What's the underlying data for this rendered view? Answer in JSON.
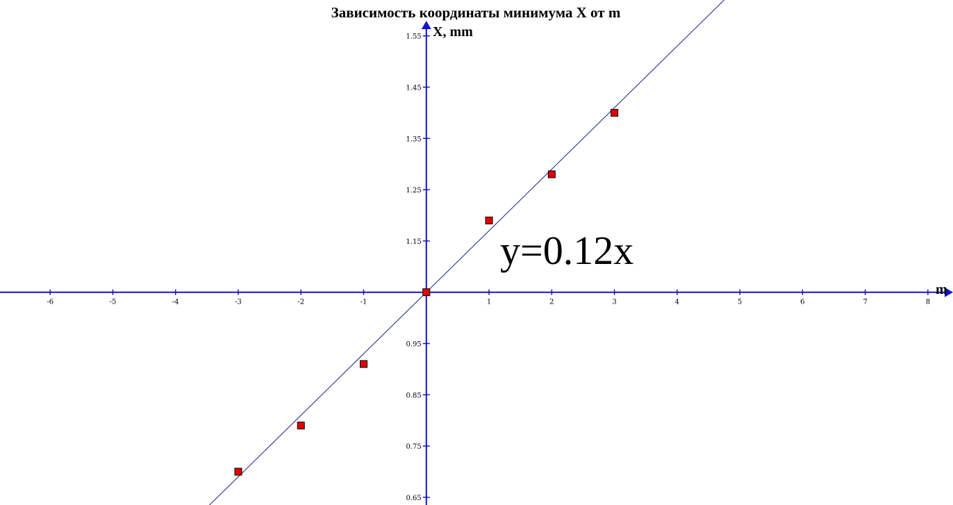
{
  "chart_data": {
    "type": "scatter",
    "title": "Зависимость координаты минимума X от m",
    "xlabel": "m",
    "ylabel": "X, mm",
    "xlim": [
      -6.8,
      8.4
    ],
    "ylim": [
      0.635,
      1.62
    ],
    "x_ticks": [
      -6,
      -5,
      -4,
      -3,
      -2,
      -1,
      1,
      2,
      3,
      4,
      5,
      6,
      7,
      8
    ],
    "x_tick_labels": [
      "-6",
      "-5",
      "-4",
      "-3",
      "-2",
      "-1",
      "1",
      "2",
      "3",
      "4",
      "5",
      "6",
      "7",
      "8"
    ],
    "y_ticks": [
      0.65,
      0.75,
      0.85,
      0.95,
      1.15,
      1.25,
      1.35,
      1.45,
      1.55
    ],
    "y_tick_labels": [
      "0.65",
      "0.75",
      "0.85",
      "0.95",
      "1.15",
      "1.25",
      "1.35",
      "1.45",
      "1.55"
    ],
    "axis_crossing": {
      "x": 0,
      "y": 1.05
    },
    "grid": false,
    "series": [
      {
        "x": [
          -3,
          -2,
          -1,
          0,
          1,
          2,
          3
        ],
        "y": [
          0.7,
          0.79,
          0.91,
          1.05,
          1.19,
          1.28,
          1.4
        ],
        "marker": "square",
        "color": "#e00000"
      }
    ],
    "fit_line": {
      "label": "y=0.12x",
      "slope": 0.12,
      "intercept": 1.05,
      "x_range": [
        -3.5,
        4.8
      ],
      "color": "#1a1a8c"
    },
    "axis_color": "#1414c8"
  }
}
